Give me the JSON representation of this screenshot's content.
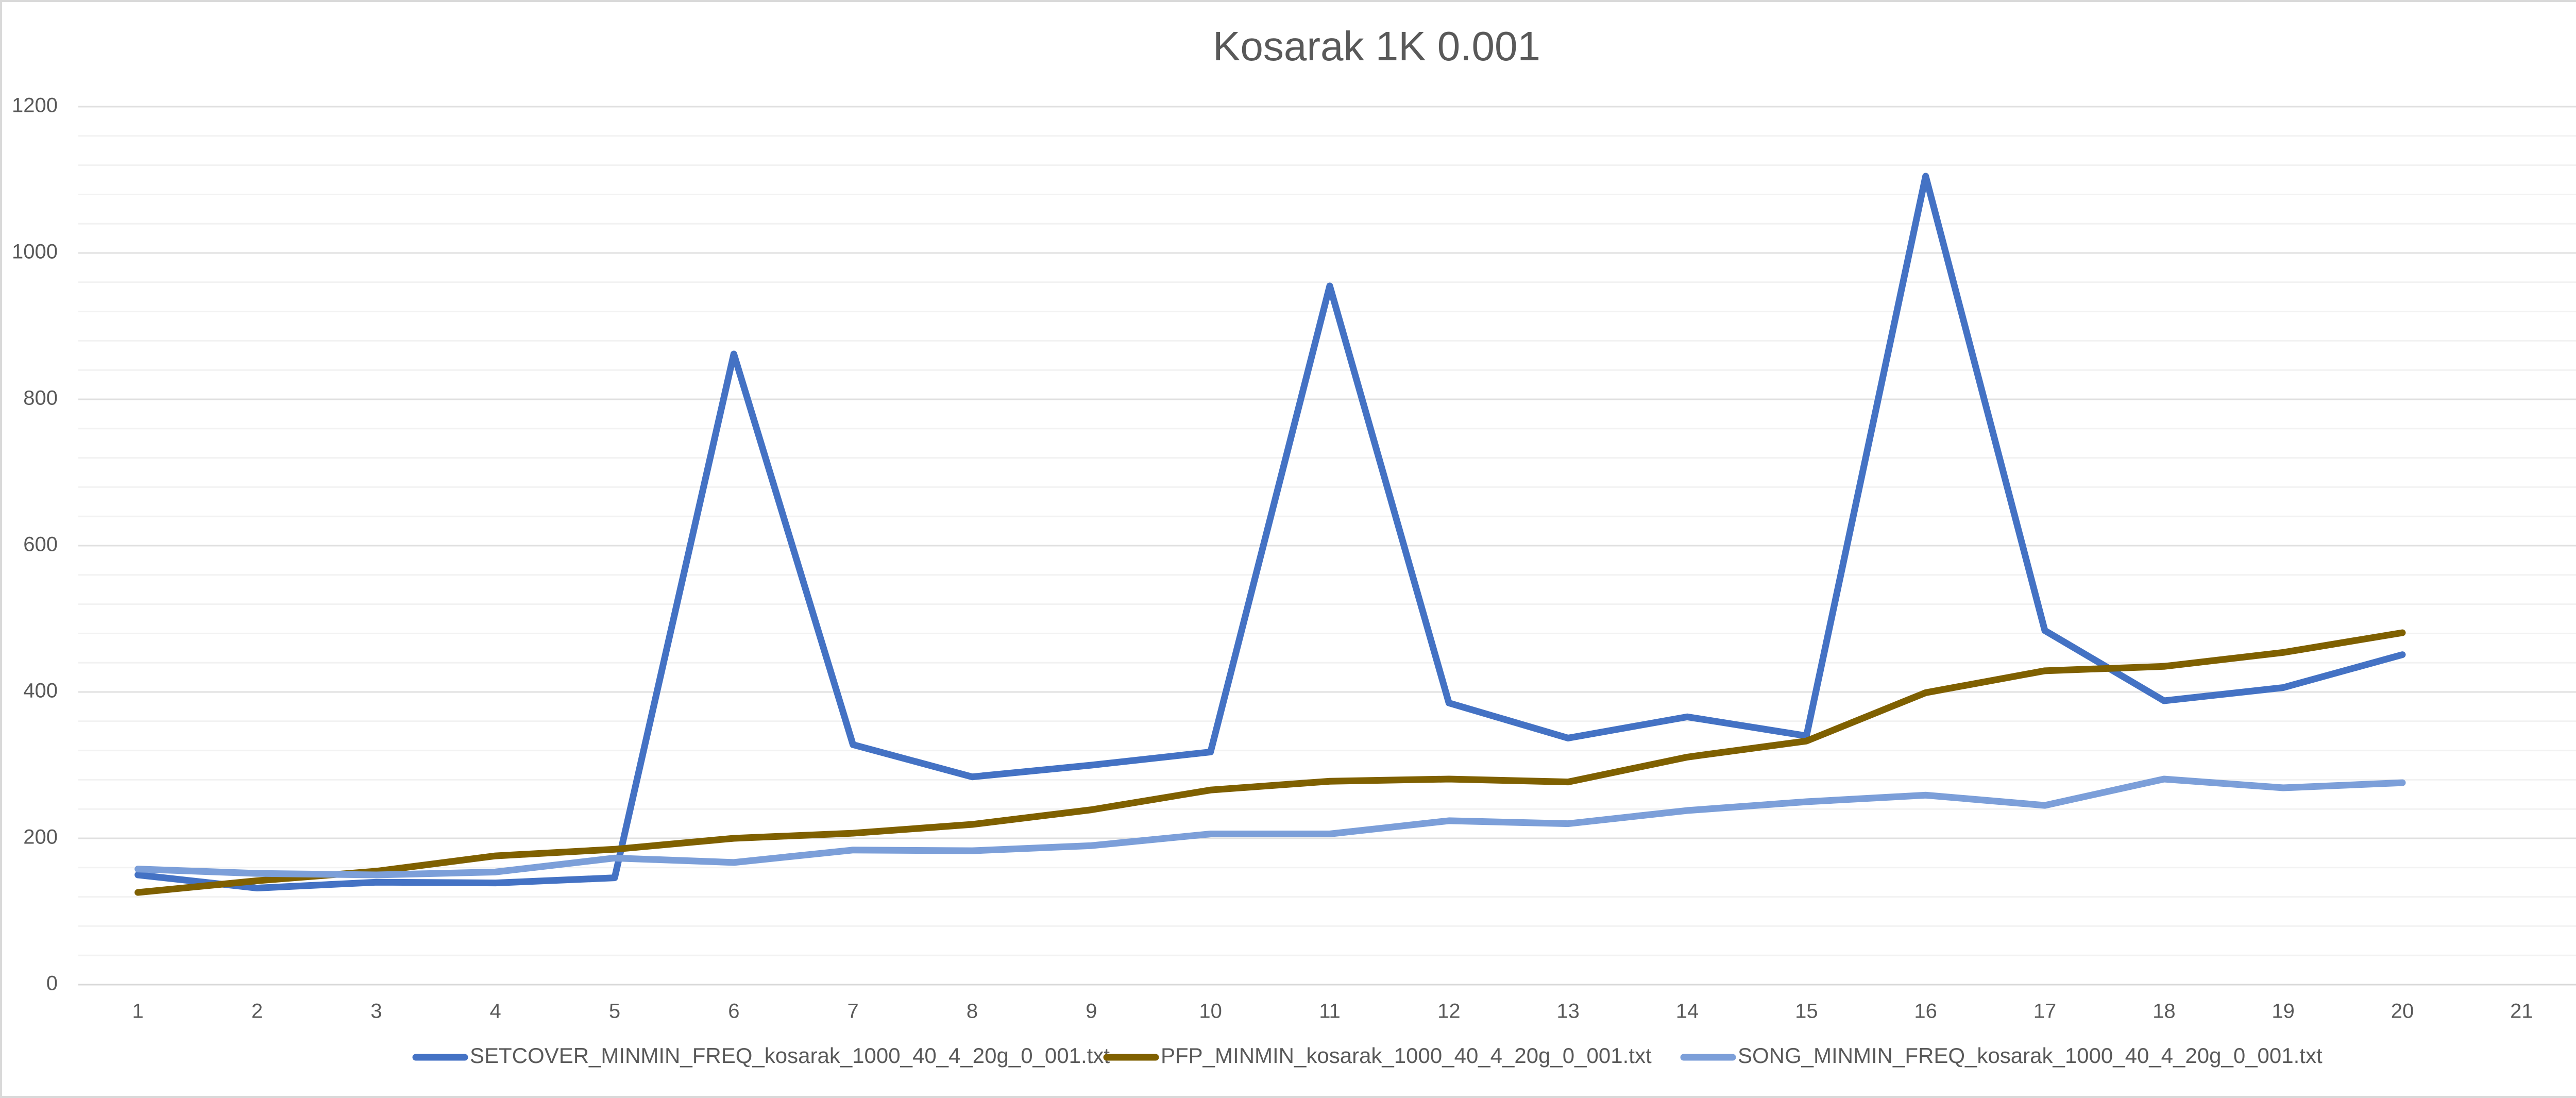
{
  "chart_data": {
    "type": "line",
    "title": "Kosarak 1K 0.001",
    "categories": [
      "1",
      "2",
      "3",
      "4",
      "5",
      "6",
      "7",
      "8",
      "9",
      "10",
      "11",
      "12",
      "13",
      "14",
      "15",
      "16",
      "17",
      "18",
      "19",
      "20",
      "21"
    ],
    "series": [
      {
        "name": "SETCOVER_MINMIN_FREQ_kosarak_1000_40_4_20g_0_001.txt",
        "color": "#4472c4",
        "values": [
          150,
          132,
          140,
          139,
          146,
          862,
          328,
          284,
          300,
          318,
          955,
          385,
          337,
          366,
          340,
          1105,
          484,
          388,
          406,
          451,
          null
        ]
      },
      {
        "name": "PFP_MINMIN_kosarak_1000_40_4_20g_0_001.txt",
        "color": "#7f6000",
        "values": [
          126,
          142,
          155,
          176,
          185,
          200,
          207,
          219,
          239,
          266,
          278,
          281,
          277,
          311,
          333,
          399,
          429,
          435,
          454,
          481,
          null
        ]
      },
      {
        "name": "SONG_MINMIN_FREQ_kosarak_1000_40_4_20g_0_001.txt",
        "color": "#7c9fd9",
        "values": [
          158,
          152,
          150,
          154,
          173,
          167,
          184,
          183,
          190,
          206,
          206,
          224,
          220,
          238,
          250,
          259,
          245,
          281,
          269,
          276,
          null
        ]
      }
    ],
    "ylim": [
      0,
      1200
    ],
    "yticks": [
      0,
      200,
      400,
      600,
      800,
      1000,
      1200
    ],
    "y_minor_ticks": [
      40,
      80,
      120,
      160,
      240,
      280,
      320,
      360,
      440,
      480,
      520,
      560,
      640,
      680,
      720,
      760,
      840,
      880,
      920,
      960,
      1040,
      1080,
      1120,
      1160
    ],
    "grid": true,
    "legend": "bottom"
  }
}
